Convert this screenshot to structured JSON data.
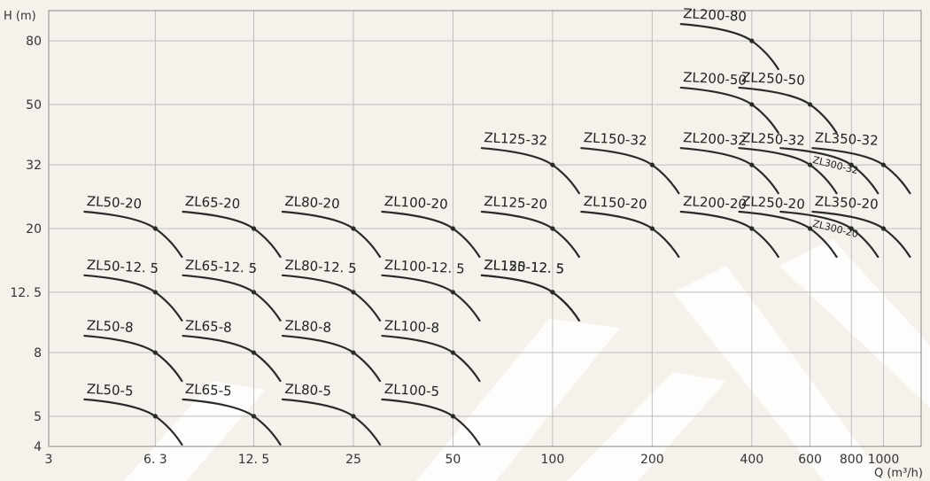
{
  "chart_data": {
    "type": "line",
    "xlabel": "Q (m³/h)",
    "ylabel": "H (m)",
    "x_scale": "log",
    "y_scale": "log",
    "xlim": [
      3,
      1300
    ],
    "ylim": [
      4,
      100
    ],
    "x_ticks": [
      {
        "value": 3,
        "label": "3"
      },
      {
        "value": 6.3,
        "label": "6. 3"
      },
      {
        "value": 12.5,
        "label": "12. 5"
      },
      {
        "value": 25,
        "label": "25"
      },
      {
        "value": 50,
        "label": "50"
      },
      {
        "value": 100,
        "label": "100"
      },
      {
        "value": 200,
        "label": "200"
      },
      {
        "value": 400,
        "label": "400"
      },
      {
        "value": 600,
        "label": "600"
      },
      {
        "value": 800,
        "label": "800"
      },
      {
        "value": 1000,
        "label": "1000"
      }
    ],
    "y_ticks": [
      {
        "value": 4,
        "label": "4"
      },
      {
        "value": 5,
        "label": "5"
      },
      {
        "value": 8,
        "label": "8"
      },
      {
        "value": 12.5,
        "label": "12. 5"
      },
      {
        "value": 20,
        "label": "20"
      },
      {
        "value": 32,
        "label": "32"
      },
      {
        "value": 50,
        "label": "50"
      },
      {
        "value": 80,
        "label": "80"
      }
    ],
    "grid": true,
    "series": [
      {
        "name": "ZL50-20",
        "Q": 6.3,
        "H": 20
      },
      {
        "name": "ZL65-20",
        "Q": 12.5,
        "H": 20
      },
      {
        "name": "ZL80-20",
        "Q": 25,
        "H": 20
      },
      {
        "name": "ZL100-20",
        "Q": 50,
        "H": 20
      },
      {
        "name": "ZL125-20",
        "Q": 100,
        "H": 20
      },
      {
        "name": "ZL150-20",
        "Q": 200,
        "H": 20
      },
      {
        "name": "ZL200-20",
        "Q": 400,
        "H": 20
      },
      {
        "name": "ZL250-20",
        "Q": 600,
        "H": 20
      },
      {
        "name": "ZL300-20",
        "Q": 800,
        "H": 20
      },
      {
        "name": "ZL350-20",
        "Q": 1000,
        "H": 20
      },
      {
        "name": "ZL50-12. 5",
        "Q": 6.3,
        "H": 12.5
      },
      {
        "name": "ZL65-12. 5",
        "Q": 12.5,
        "H": 12.5
      },
      {
        "name": "ZL80-12. 5",
        "Q": 25,
        "H": 12.5
      },
      {
        "name": "ZL100-12. 5",
        "Q": 50,
        "H": 12.5
      },
      {
        "name": "ZL125-12. 5",
        "Q": 100,
        "H": 12.5
      },
      {
        "name": "ZL150-12. 5",
        "Q": 100,
        "H": 12.5
      },
      {
        "name": "ZL50-8",
        "Q": 6.3,
        "H": 8
      },
      {
        "name": "ZL65-8",
        "Q": 12.5,
        "H": 8
      },
      {
        "name": "ZL80-8",
        "Q": 25,
        "H": 8
      },
      {
        "name": "ZL100-8",
        "Q": 50,
        "H": 8
      },
      {
        "name": "ZL50-5",
        "Q": 6.3,
        "H": 5
      },
      {
        "name": "ZL65-5",
        "Q": 12.5,
        "H": 5
      },
      {
        "name": "ZL80-5",
        "Q": 25,
        "H": 5
      },
      {
        "name": "ZL100-5",
        "Q": 50,
        "H": 5
      },
      {
        "name": "ZL125-32",
        "Q": 100,
        "H": 32
      },
      {
        "name": "ZL150-32",
        "Q": 200,
        "H": 32
      },
      {
        "name": "ZL200-32",
        "Q": 400,
        "H": 32
      },
      {
        "name": "ZL250-32",
        "Q": 600,
        "H": 32
      },
      {
        "name": "ZL300-32",
        "Q": 800,
        "H": 32
      },
      {
        "name": "ZL350-32",
        "Q": 1000,
        "H": 32
      },
      {
        "name": "ZL200-50",
        "Q": 400,
        "H": 50
      },
      {
        "name": "ZL250-50",
        "Q": 600,
        "H": 50
      },
      {
        "name": "ZL200-80",
        "Q": 400,
        "H": 80
      }
    ]
  }
}
